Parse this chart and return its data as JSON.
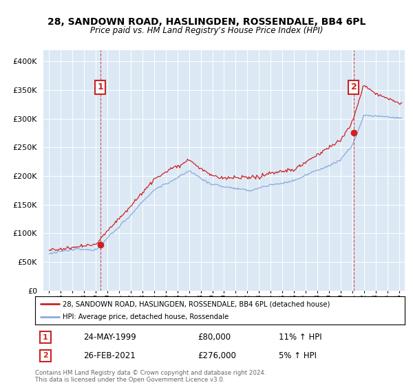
{
  "title_line1": "28, SANDOWN ROAD, HASLINGDEN, ROSSENDALE, BB4 6PL",
  "title_line2": "Price paid vs. HM Land Registry's House Price Index (HPI)",
  "background_color": "#ffffff",
  "plot_bg_color": "#dce9f5",
  "grid_color": "#ffffff",
  "red_line_color": "#cc2222",
  "blue_line_color": "#88aadd",
  "sale1_year": 1999.38,
  "sale1_price": 80000,
  "sale2_year": 2021.13,
  "sale2_price": 276000,
  "legend_label_red": "28, SANDOWN ROAD, HASLINGDEN, ROSSENDALE, BB4 6PL (detached house)",
  "legend_label_blue": "HPI: Average price, detached house, Rossendale",
  "annotation1_label": "1",
  "annotation1_date": "24-MAY-1999",
  "annotation1_price": "£80,000",
  "annotation1_hpi": "11% ↑ HPI",
  "annotation2_label": "2",
  "annotation2_date": "26-FEB-2021",
  "annotation2_price": "£276,000",
  "annotation2_hpi": "5% ↑ HPI",
  "copyright_text": "Contains HM Land Registry data © Crown copyright and database right 2024.\nThis data is licensed under the Open Government Licence v3.0.",
  "xmin": 1994.5,
  "xmax": 2025.5,
  "ymin": 0,
  "ymax": 420000,
  "ytick_interval": 50000
}
